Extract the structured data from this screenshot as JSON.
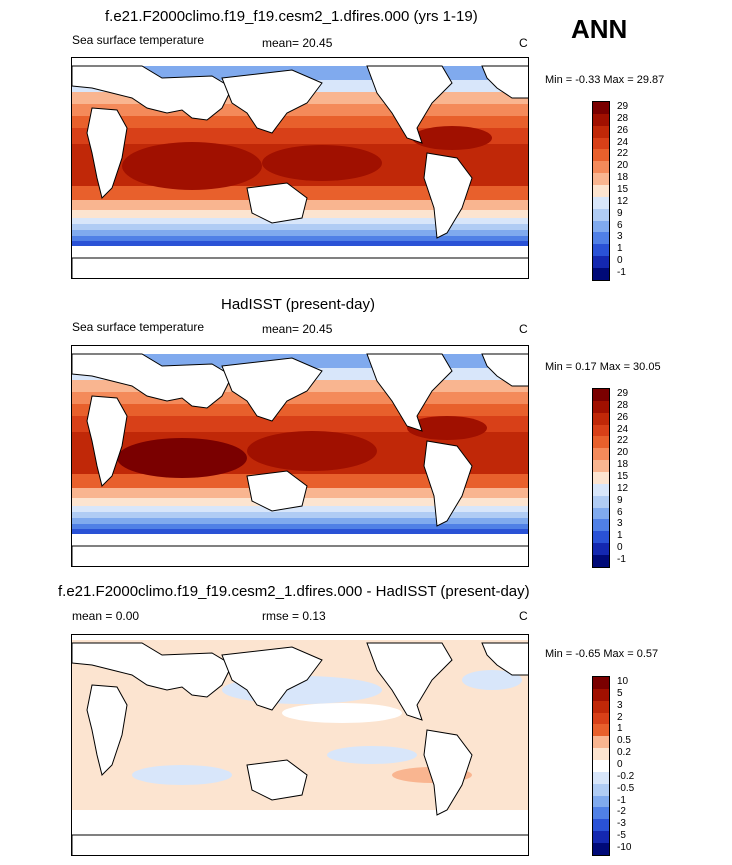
{
  "season": "ANN",
  "panels": [
    {
      "title": "f.e21.F2000climo.f19_f19.cesm2_1.dfires.000 (yrs 1-19)",
      "left_label": "Sea surface temperature",
      "mean_text": "mean=  20.45",
      "units": "C",
      "minmax": "Min =  -0.33 Max =  29.87"
    },
    {
      "title": "HadISST (present-day)",
      "left_label": "Sea surface temperature",
      "mean_text": "mean=  20.45",
      "units": "C",
      "minmax": "Min =  0.17 Max =  30.05"
    },
    {
      "title": "f.e21.F2000climo.f19_f19.cesm2_1.dfires.000 - HadISST (present-day)",
      "left_label": "mean =   0.00",
      "mean_text": "rmse =   0.13",
      "units": "C",
      "minmax": "Min =  -0.65 Max =   0.57"
    }
  ],
  "chart_data": [
    {
      "type": "heatmap",
      "title": "f.e21.F2000climo.f19_f19.cesm2_1.dfires.000 (yrs 1-19)",
      "variable": "Sea surface temperature",
      "units": "C",
      "mean": 20.45,
      "min": -0.33,
      "max": 29.87,
      "colorbar_levels": [
        "29",
        "28",
        "26",
        "24",
        "22",
        "20",
        "18",
        "15",
        "12",
        "9",
        "6",
        "3",
        "1",
        "0",
        "-1"
      ]
    },
    {
      "type": "heatmap",
      "title": "HadISST (present-day)",
      "variable": "Sea surface temperature",
      "units": "C",
      "mean": 20.45,
      "min": 0.17,
      "max": 30.05,
      "colorbar_levels": [
        "29",
        "28",
        "26",
        "24",
        "22",
        "20",
        "18",
        "15",
        "12",
        "9",
        "6",
        "3",
        "1",
        "0",
        "-1"
      ]
    },
    {
      "type": "heatmap",
      "title": "f.e21.F2000climo.f19_f19.cesm2_1.dfires.000 - HadISST (present-day)",
      "units": "C",
      "mean": 0.0,
      "rmse": 0.13,
      "min": -0.65,
      "max": 0.57,
      "colorbar_levels": [
        "10",
        "5",
        "3",
        "2",
        "1",
        "0.5",
        "0.2",
        "0",
        "-0.2",
        "-0.5",
        "-1",
        "-2",
        "-3",
        "-5",
        "-10"
      ]
    }
  ],
  "colors": {
    "abs_scale": [
      "#7a0000",
      "#a01000",
      "#c02808",
      "#d84018",
      "#e8602c",
      "#f48a5a",
      "#f9b590",
      "#fce4d0",
      "#d8e6fa",
      "#b0ccf4",
      "#80aaee",
      "#5080e6",
      "#2a52d6",
      "#1428b0",
      "#000a78"
    ],
    "diff_scale": [
      "#7a0000",
      "#a01000",
      "#c02808",
      "#d84018",
      "#e8602c",
      "#f9b590",
      "#fce4d0",
      "#ffffff",
      "#d8e6fa",
      "#b0ccf4",
      "#80aaee",
      "#5080e6",
      "#2a52d6",
      "#1428b0",
      "#000a78"
    ]
  }
}
